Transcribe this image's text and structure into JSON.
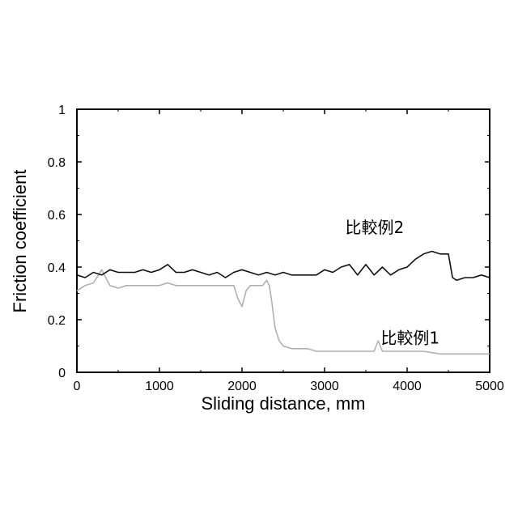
{
  "chart_data": {
    "type": "line",
    "xlabel": "Sliding distance, mm",
    "ylabel": "Friction coefficient",
    "xlim": [
      0,
      5000
    ],
    "ylim": [
      0,
      1
    ],
    "xticks": [
      0,
      1000,
      2000,
      3000,
      4000,
      5000
    ],
    "yticks": [
      0,
      0.2,
      0.4,
      0.6,
      0.8,
      1
    ],
    "ytick_labels": [
      "0",
      "0.2",
      "0.4",
      "0.6",
      "0.8",
      "1"
    ],
    "grid": false,
    "series": [
      {
        "name": "比較例1",
        "color": "#b0b0b0",
        "x": [
          0,
          100,
          200,
          300,
          400,
          500,
          600,
          700,
          800,
          900,
          1000,
          1100,
          1200,
          1300,
          1400,
          1500,
          1600,
          1700,
          1800,
          1900,
          1950,
          2000,
          2050,
          2100,
          2150,
          2200,
          2250,
          2300,
          2330,
          2360,
          2400,
          2450,
          2500,
          2600,
          2700,
          2800,
          2900,
          3000,
          3200,
          3400,
          3600,
          3650,
          3700,
          3800,
          4000,
          4200,
          4400,
          4600,
          4800,
          5000
        ],
        "y": [
          0.31,
          0.33,
          0.34,
          0.39,
          0.33,
          0.32,
          0.33,
          0.33,
          0.33,
          0.33,
          0.33,
          0.34,
          0.33,
          0.33,
          0.33,
          0.33,
          0.33,
          0.33,
          0.33,
          0.33,
          0.28,
          0.25,
          0.31,
          0.33,
          0.33,
          0.33,
          0.33,
          0.35,
          0.33,
          0.27,
          0.17,
          0.12,
          0.1,
          0.09,
          0.09,
          0.09,
          0.08,
          0.08,
          0.08,
          0.08,
          0.08,
          0.12,
          0.08,
          0.08,
          0.08,
          0.08,
          0.07,
          0.07,
          0.07,
          0.07
        ]
      },
      {
        "name": "比較例2",
        "color": "#111111",
        "x": [
          0,
          100,
          200,
          300,
          400,
          500,
          600,
          700,
          800,
          900,
          1000,
          1100,
          1200,
          1300,
          1400,
          1500,
          1600,
          1700,
          1800,
          1900,
          2000,
          2100,
          2200,
          2300,
          2400,
          2500,
          2600,
          2700,
          2800,
          2900,
          3000,
          3100,
          3200,
          3300,
          3400,
          3500,
          3600,
          3700,
          3800,
          3900,
          4000,
          4100,
          4200,
          4300,
          4400,
          4500,
          4550,
          4600,
          4700,
          4800,
          4900,
          5000
        ],
        "y": [
          0.37,
          0.36,
          0.38,
          0.37,
          0.39,
          0.38,
          0.38,
          0.38,
          0.39,
          0.38,
          0.39,
          0.41,
          0.38,
          0.38,
          0.39,
          0.38,
          0.37,
          0.38,
          0.36,
          0.38,
          0.39,
          0.38,
          0.37,
          0.38,
          0.37,
          0.38,
          0.37,
          0.37,
          0.37,
          0.37,
          0.39,
          0.38,
          0.4,
          0.41,
          0.37,
          0.41,
          0.37,
          0.4,
          0.37,
          0.39,
          0.4,
          0.43,
          0.45,
          0.46,
          0.45,
          0.45,
          0.36,
          0.35,
          0.36,
          0.36,
          0.37,
          0.36
        ]
      }
    ],
    "annotations": [
      {
        "text": "比較例2",
        "x": 3250,
        "y": 0.53,
        "series": 1
      },
      {
        "text": "比較例1",
        "x": 3680,
        "y": 0.11,
        "series": 0
      }
    ]
  }
}
